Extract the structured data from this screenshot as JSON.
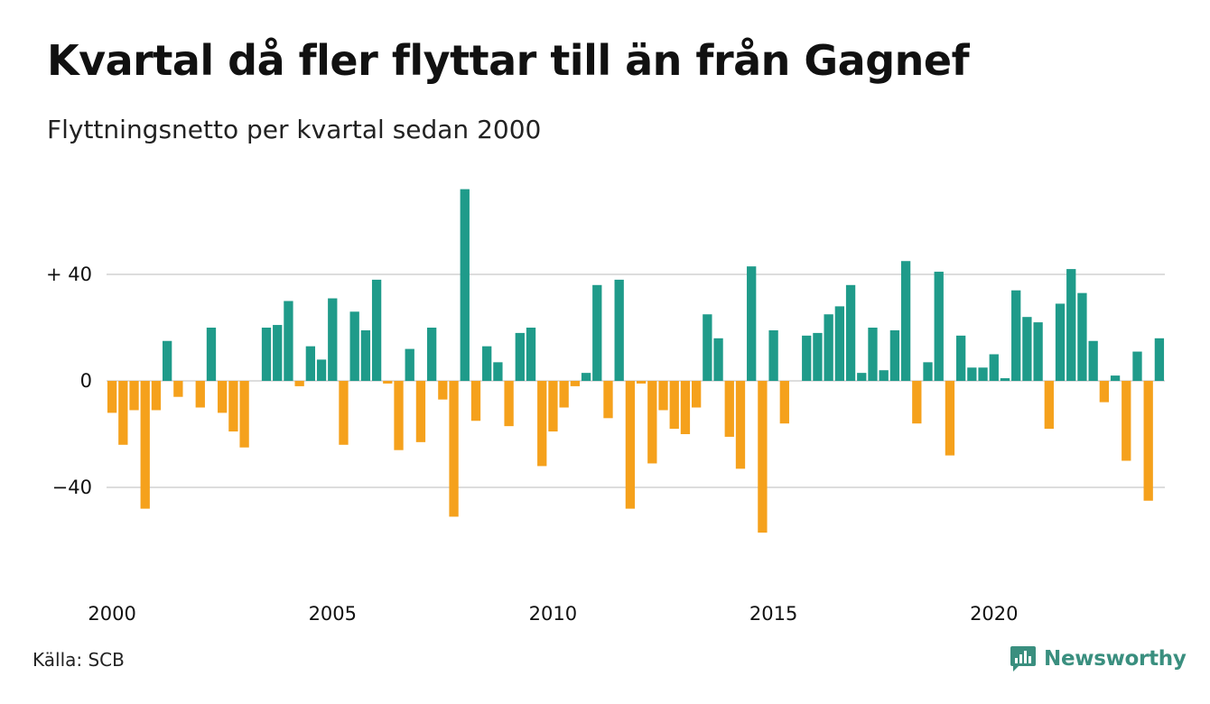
{
  "title": "Kvartal då fler flyttar till än från Gagnef",
  "subtitle": "Flyttningsnetto per kvartal sedan 2000",
  "source": "Källa: SCB",
  "brand": {
    "name": "Newsworthy",
    "icon": "newsworthy-logo-icon",
    "color": "#3a8f7f"
  },
  "colors": {
    "positive": "#1f9b8a",
    "negative": "#f5a11c",
    "grid": "#dddddd"
  },
  "chart_data": {
    "type": "bar",
    "title": "Kvartal då fler flyttar till än från Gagnef",
    "subtitle": "Flyttningsnetto per kvartal sedan 2000",
    "xlabel": "",
    "ylabel": "",
    "ylim": [
      -60,
      72
    ],
    "y_ticks": [
      {
        "value": 40,
        "label": "+ 40"
      },
      {
        "value": 0,
        "label": "0"
      },
      {
        "value": -40,
        "label": "−40"
      }
    ],
    "x_tick_labels": [
      "2000",
      "2005",
      "2010",
      "2015",
      "2020"
    ],
    "x_tick_years": [
      2000,
      2005,
      2010,
      2015,
      2020
    ],
    "start_year": 2000,
    "grid": "horizontal",
    "categories": [
      "2000 Q1",
      "2000 Q2",
      "2000 Q3",
      "2000 Q4",
      "2001 Q1",
      "2001 Q2",
      "2001 Q3",
      "2001 Q4",
      "2002 Q1",
      "2002 Q2",
      "2002 Q3",
      "2002 Q4",
      "2003 Q1",
      "2003 Q2",
      "2003 Q3",
      "2003 Q4",
      "2004 Q1",
      "2004 Q2",
      "2004 Q3",
      "2004 Q4",
      "2005 Q1",
      "2005 Q2",
      "2005 Q3",
      "2005 Q4",
      "2006 Q1",
      "2006 Q2",
      "2006 Q3",
      "2006 Q4",
      "2007 Q1",
      "2007 Q2",
      "2007 Q3",
      "2007 Q4",
      "2008 Q1",
      "2008 Q2",
      "2008 Q3",
      "2008 Q4",
      "2009 Q1",
      "2009 Q2",
      "2009 Q3",
      "2009 Q4",
      "2010 Q1",
      "2010 Q2",
      "2010 Q3",
      "2010 Q4",
      "2011 Q1",
      "2011 Q2",
      "2011 Q3",
      "2011 Q4",
      "2012 Q1",
      "2012 Q2",
      "2012 Q3",
      "2012 Q4",
      "2013 Q1",
      "2013 Q2",
      "2013 Q3",
      "2013 Q4",
      "2014 Q1",
      "2014 Q2",
      "2014 Q3",
      "2014 Q4",
      "2015 Q1",
      "2015 Q2",
      "2015 Q3",
      "2015 Q4",
      "2016 Q1",
      "2016 Q2",
      "2016 Q3",
      "2016 Q4",
      "2017 Q1",
      "2017 Q2",
      "2017 Q3",
      "2017 Q4",
      "2018 Q1",
      "2018 Q2",
      "2018 Q3",
      "2018 Q4",
      "2019 Q1",
      "2019 Q2",
      "2019 Q3",
      "2019 Q4",
      "2020 Q1",
      "2020 Q2",
      "2020 Q3",
      "2020 Q4",
      "2021 Q1",
      "2021 Q2",
      "2021 Q3",
      "2021 Q4",
      "2022 Q1",
      "2022 Q2",
      "2022 Q3",
      "2022 Q4",
      "2023 Q1",
      "2023 Q2",
      "2023 Q3",
      "2023 Q4"
    ],
    "values": [
      -12,
      -24,
      -11,
      -48,
      -11,
      15,
      -6,
      0,
      -10,
      20,
      -12,
      -19,
      -25,
      0,
      20,
      21,
      30,
      -2,
      13,
      8,
      31,
      -24,
      26,
      19,
      38,
      -1,
      -26,
      12,
      -23,
      20,
      -7,
      -51,
      72,
      -15,
      13,
      7,
      -17,
      18,
      20,
      -32,
      -19,
      -10,
      -2,
      3,
      36,
      -14,
      38,
      -48,
      -1,
      -31,
      -11,
      -18,
      -20,
      -10,
      25,
      16,
      -21,
      -33,
      43,
      -57,
      19,
      -16,
      0,
      17,
      18,
      25,
      28,
      36,
      3,
      20,
      4,
      19,
      45,
      -16,
      7,
      41,
      -28,
      17,
      5,
      5,
      10,
      1,
      34,
      24,
      22,
      -18,
      29,
      42,
      33,
      15,
      -8,
      2,
      -30,
      11,
      -45,
      16
    ]
  }
}
